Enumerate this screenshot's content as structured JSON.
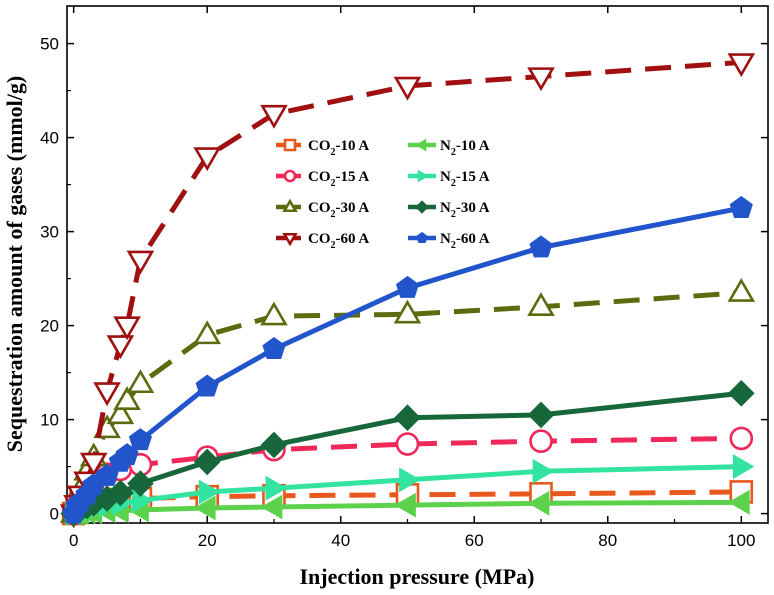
{
  "chart_data": {
    "type": "line",
    "title": "",
    "xlabel": "Injection pressure (MPa)",
    "ylabel": "Sequestration amount of gases (mmol/g)",
    "xlim": [
      -1,
      104
    ],
    "ylim": [
      -1,
      54
    ],
    "xticks": [
      0,
      20,
      40,
      60,
      80,
      100
    ],
    "yticks": [
      0,
      10,
      20,
      30,
      40,
      50
    ],
    "legend_position": "upper-center",
    "series": [
      {
        "name": "CO2-10 A",
        "base": "CO",
        "sub": "2",
        "suffix": "-10 A",
        "marker": "square",
        "filled": false,
        "dashed": true,
        "color": "#E8581C",
        "x": [
          0,
          0.5,
          1,
          2,
          3,
          5,
          7,
          10,
          20,
          30,
          50,
          70,
          100
        ],
        "y": [
          0,
          0.5,
          0.8,
          1.0,
          1.2,
          1.4,
          1.5,
          1.6,
          1.8,
          1.9,
          2.0,
          2.1,
          2.3
        ]
      },
      {
        "name": "CO2-15 A",
        "base": "CO",
        "sub": "2",
        "suffix": "-15 A",
        "marker": "circle",
        "filled": false,
        "dashed": true,
        "color": "#F0285A",
        "x": [
          0,
          0.5,
          1,
          2,
          3,
          5,
          7,
          10,
          20,
          30,
          50,
          70,
          100
        ],
        "y": [
          0,
          1.0,
          1.8,
          2.8,
          3.4,
          4.2,
          4.7,
          5.2,
          6.0,
          6.8,
          7.4,
          7.7,
          8.0
        ]
      },
      {
        "name": "CO2-30 A",
        "base": "CO",
        "sub": "2",
        "suffix": "-30 A",
        "marker": "triangle-up",
        "filled": false,
        "dashed": true,
        "color": "#5C6B10",
        "x": [
          0,
          0.5,
          1,
          2,
          3,
          5,
          7,
          8,
          10,
          20,
          30,
          50,
          70,
          100
        ],
        "y": [
          0,
          1.5,
          2.5,
          4.5,
          6.0,
          9.0,
          10.5,
          12.0,
          13.8,
          19.0,
          21.0,
          21.2,
          22.0,
          23.5
        ]
      },
      {
        "name": "CO2-60 A",
        "base": "CO",
        "sub": "2",
        "suffix": "-60 A",
        "marker": "triangle-down",
        "filled": false,
        "dashed": true,
        "color": "#A01010",
        "x": [
          0,
          0.5,
          1,
          2,
          3,
          5,
          7,
          8,
          10,
          20,
          30,
          50,
          70,
          100
        ],
        "y": [
          0,
          1.0,
          2.0,
          3.5,
          5.5,
          13.0,
          18.0,
          20.0,
          27.0,
          38.0,
          42.5,
          45.5,
          46.5,
          48.0
        ]
      },
      {
        "name": "N2-10 A",
        "base": "N",
        "sub": "2",
        "suffix": "-10 A",
        "marker": "triangle-left",
        "filled": true,
        "dashed": false,
        "color": "#5CD24C",
        "x": [
          0,
          0.5,
          1,
          2,
          3,
          5,
          7,
          10,
          20,
          30,
          50,
          70,
          100
        ],
        "y": [
          0,
          0.1,
          0.1,
          0.2,
          0.2,
          0.3,
          0.3,
          0.4,
          0.6,
          0.7,
          0.9,
          1.1,
          1.2
        ]
      },
      {
        "name": "N2-15 A",
        "base": "N",
        "sub": "2",
        "suffix": "-15 A",
        "marker": "triangle-right",
        "filled": true,
        "dashed": false,
        "color": "#33E3A0",
        "x": [
          0,
          0.5,
          1,
          2,
          3,
          5,
          7,
          10,
          20,
          30,
          50,
          70,
          100
        ],
        "y": [
          0,
          0.2,
          0.3,
          0.5,
          0.6,
          0.9,
          1.1,
          1.4,
          2.3,
          2.7,
          3.6,
          4.5,
          5.0
        ]
      },
      {
        "name": "N2-30 A",
        "base": "N",
        "sub": "2",
        "suffix": "-30 A",
        "marker": "diamond",
        "filled": true,
        "dashed": false,
        "color": "#17673A",
        "x": [
          0,
          0.5,
          1,
          2,
          3,
          5,
          7,
          10,
          20,
          30,
          50,
          70,
          100
        ],
        "y": [
          0,
          0.3,
          0.5,
          0.8,
          1.1,
          1.6,
          2.2,
          3.2,
          5.5,
          7.3,
          10.2,
          10.5,
          12.8
        ]
      },
      {
        "name": "N2-60 A",
        "base": "N",
        "sub": "2",
        "suffix": "-60 A",
        "marker": "pentagon",
        "filled": true,
        "dashed": false,
        "color": "#2255CC",
        "x": [
          0,
          0.5,
          1,
          2,
          3,
          5,
          7,
          8,
          10,
          20,
          30,
          50,
          70,
          100
        ],
        "y": [
          0,
          0.8,
          1.2,
          2.0,
          3.0,
          4.0,
          5.5,
          6.2,
          7.8,
          13.5,
          17.5,
          24.0,
          28.3,
          32.5
        ]
      }
    ]
  }
}
